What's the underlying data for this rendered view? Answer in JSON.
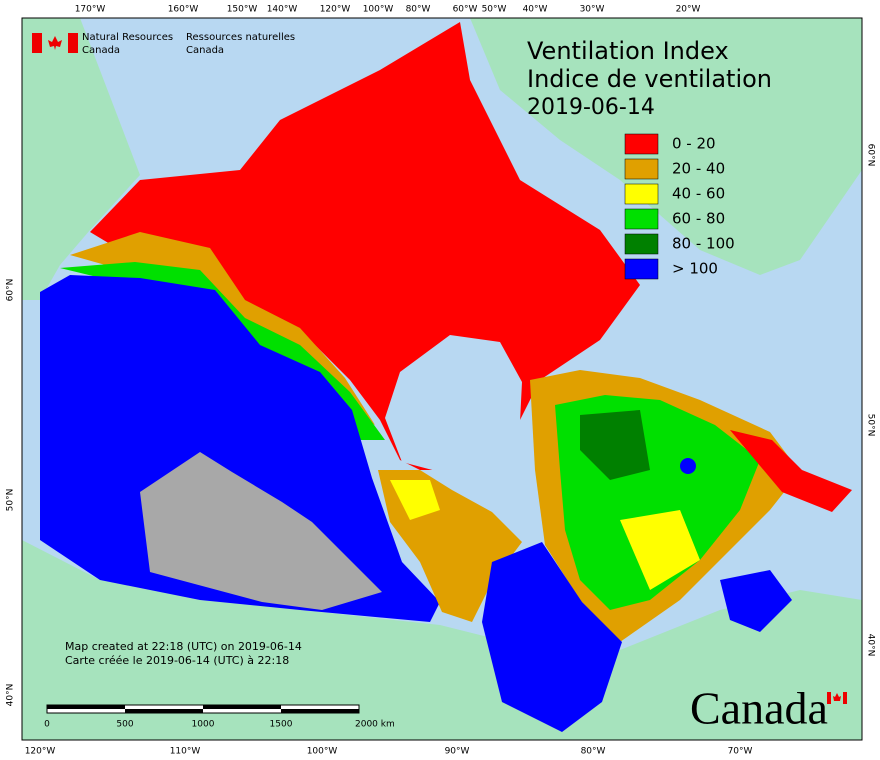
{
  "header": {
    "agency_en": [
      "Natural Resources",
      "Canada"
    ],
    "agency_fr": [
      "Ressources naturelles",
      "Canada"
    ]
  },
  "title": [
    "Ventilation Index",
    "Indice de ventilation",
    "2019-06-14"
  ],
  "legend": [
    {
      "label": "0 - 20",
      "color": "#ff0000"
    },
    {
      "label": "20 - 40",
      "color": "#e0a000"
    },
    {
      "label": "40 - 60",
      "color": "#ffff00"
    },
    {
      "label": "60 - 80",
      "color": "#00e000"
    },
    {
      "label": "80 - 100",
      "color": "#008000"
    },
    {
      "label": "> 100",
      "color": "#0000ff"
    }
  ],
  "graticule": {
    "top": [
      "170°W",
      "160°W",
      "150°W",
      "140°W",
      "120°W",
      "100°W",
      "80°W",
      "60°W",
      "50°W",
      "40°W",
      "30°W",
      "20°W"
    ],
    "bottom": [
      "120°W",
      "110°W",
      "100°W",
      "90°W",
      "80°W",
      "70°W"
    ],
    "left": [
      "60°N",
      "50°N",
      "40°N"
    ],
    "right": [
      "60°N",
      "50°N",
      "40°N"
    ]
  },
  "credits": [
    "Map created at 22:18 (UTC) on 2019-06-14",
    "Carte créée le 2019-06-14 (UTC) à 22:18"
  ],
  "scale_bar": {
    "ticks": [
      "0",
      "500",
      "1000",
      "1500"
    ],
    "end_label": "2000 km"
  },
  "wordmark": "Canada"
}
